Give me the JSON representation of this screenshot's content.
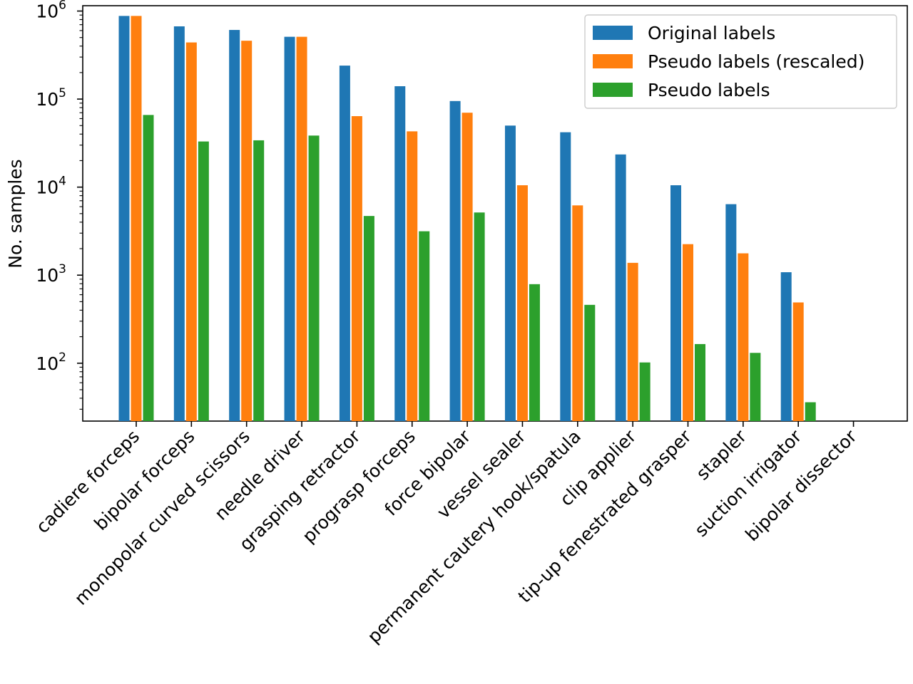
{
  "chart_data": {
    "type": "bar",
    "scale": "log",
    "title": "",
    "xlabel": "",
    "ylabel": "No. samples",
    "ylim": [
      22,
      1150000
    ],
    "y_ticks": [
      {
        "value": 100,
        "base": "10",
        "exp": "2"
      },
      {
        "value": 1000,
        "base": "10",
        "exp": "3"
      },
      {
        "value": 10000,
        "base": "10",
        "exp": "4"
      },
      {
        "value": 100000,
        "base": "10",
        "exp": "5"
      },
      {
        "value": 1000000,
        "base": "10",
        "exp": "6"
      }
    ],
    "legend_position": "top-right",
    "categories": [
      "cadiere forceps",
      "bipolar forceps",
      "monopolar curved scissors",
      "needle driver",
      "grasping retractor",
      "prograsp forceps",
      "force bipolar",
      "vessel sealer",
      "permanent cautery hook/spatula",
      "clip applier",
      "tip-up fenestrated grasper",
      "stapler",
      "suction irrigator",
      "bipolar dissector"
    ],
    "series": [
      {
        "name": "Original labels",
        "color": "#1f77b4",
        "values": [
          880000,
          670000,
          610000,
          510000,
          240000,
          140000,
          95000,
          50000,
          42000,
          23500,
          10500,
          6400,
          1080,
          null
        ]
      },
      {
        "name": "Pseudo labels (rescaled)",
        "color": "#ff7f0e",
        "values": [
          880000,
          440000,
          460000,
          510000,
          64000,
          43000,
          70000,
          10500,
          6200,
          1380,
          2250,
          1770,
          490,
          null
        ]
      },
      {
        "name": "Pseudo labels",
        "color": "#2ca02c",
        "values": [
          66000,
          33000,
          34000,
          38500,
          4700,
          3150,
          5150,
          790,
          460,
          102,
          165,
          131,
          36,
          null
        ]
      }
    ]
  }
}
